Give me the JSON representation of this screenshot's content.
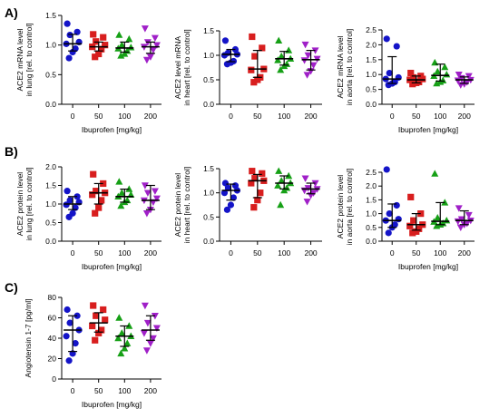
{
  "panel_labels": [
    "A)",
    "B)",
    "C)"
  ],
  "colors": {
    "0": "#1414c8",
    "50": "#d81e1e",
    "100": "#16a016",
    "200": "#a020c8",
    "axis": "#000000",
    "errorbar": "#000000"
  },
  "marker_shapes": {
    "0": "circle",
    "50": "square",
    "100": "triangle-up",
    "200": "triangle-down"
  },
  "chart_data": [
    {
      "id": "A1",
      "type": "scatter",
      "categories": [
        "0",
        "50",
        "100",
        "200"
      ],
      "xlabel": "Ibuprofen [mg/kg]",
      "ylabel_lines": [
        "ACE2 mRNA level",
        "in lung [rel. to control]"
      ],
      "ylim": [
        0,
        1.5
      ],
      "yticks": [
        0.0,
        0.5,
        1.0,
        1.5
      ],
      "yticklabels": [
        "0.0",
        "0.5",
        "1.0",
        "1.5"
      ],
      "grid": false,
      "series": [
        {
          "category": "0",
          "values": [
            1.36,
            1.22,
            1.17,
            1.05,
            1.02,
            0.94,
            0.88,
            0.78
          ],
          "median": 1.02,
          "err": [
            0.9,
            1.18
          ]
        },
        {
          "category": "50",
          "values": [
            1.18,
            1.13,
            1.06,
            1.0,
            0.97,
            0.93,
            0.85,
            0.8
          ],
          "median": 0.97,
          "err": [
            0.9,
            1.05
          ]
        },
        {
          "category": "100",
          "values": [
            1.17,
            1.1,
            1.0,
            0.96,
            0.94,
            0.9,
            0.85,
            0.82
          ],
          "median": 0.95,
          "err": [
            0.88,
            1.05
          ]
        },
        {
          "category": "200",
          "values": [
            1.28,
            1.12,
            1.05,
            1.0,
            0.97,
            0.92,
            0.8,
            0.75
          ],
          "median": 0.97,
          "err": [
            0.86,
            1.05
          ]
        }
      ]
    },
    {
      "id": "A2",
      "type": "scatter",
      "categories": [
        "0",
        "50",
        "100",
        "200"
      ],
      "xlabel": "",
      "ylabel_lines": [
        "ACE2 level mRNA",
        "in heart [rel. to control]"
      ],
      "ylim": [
        0,
        1.5
      ],
      "yticks": [
        0.0,
        0.5,
        1.0,
        1.5
      ],
      "yticklabels": [
        "0.0",
        "0.5",
        "1.0",
        "1.5"
      ],
      "grid": false,
      "series": [
        {
          "category": "0",
          "values": [
            1.3,
            1.12,
            1.05,
            1.02,
            1.0,
            0.88,
            0.85,
            0.82
          ],
          "median": 1.02,
          "err": [
            0.87,
            1.12
          ]
        },
        {
          "category": "50",
          "values": [
            1.38,
            1.15,
            0.98,
            0.72,
            0.7,
            0.55,
            0.5,
            0.45
          ],
          "median": 0.72,
          "err": [
            0.55,
            1.1
          ]
        },
        {
          "category": "100",
          "values": [
            1.3,
            1.1,
            0.98,
            0.93,
            0.9,
            0.82,
            0.78,
            0.7
          ],
          "median": 0.93,
          "err": [
            0.8,
            1.08
          ]
        },
        {
          "category": "200",
          "values": [
            1.22,
            1.1,
            1.0,
            0.93,
            0.9,
            0.8,
            0.68,
            0.6
          ],
          "median": 0.91,
          "err": [
            0.7,
            1.1
          ]
        }
      ]
    },
    {
      "id": "A3",
      "type": "scatter",
      "categories": [
        "0",
        "50",
        "100",
        "200"
      ],
      "xlabel": "Ibuprofen [mg/kg]",
      "ylabel_lines": [
        "ACE2 mRNA level",
        "in aorta [rel. to control]"
      ],
      "ylim": [
        0,
        2.5
      ],
      "yticks": [
        0.0,
        0.5,
        1.0,
        1.5,
        2.0,
        2.5
      ],
      "yticklabels": [
        "0.0",
        "0.5",
        "1.0",
        "1.5",
        "2.0",
        "2.5"
      ],
      "grid": false,
      "series": [
        {
          "category": "0",
          "values": [
            2.2,
            1.95,
            1.05,
            0.9,
            0.85,
            0.75,
            0.7,
            0.65
          ],
          "median": 0.85,
          "err": [
            0.7,
            1.6
          ]
        },
        {
          "category": "50",
          "values": [
            1.05,
            0.95,
            0.9,
            0.85,
            0.82,
            0.75,
            0.72,
            0.68
          ],
          "median": 0.82,
          "err": [
            0.72,
            0.95
          ]
        },
        {
          "category": "100",
          "values": [
            1.4,
            1.25,
            1.1,
            1.0,
            0.95,
            0.8,
            0.75,
            0.7
          ],
          "median": 0.97,
          "err": [
            0.78,
            1.35
          ]
        },
        {
          "category": "200",
          "values": [
            1.0,
            0.95,
            0.88,
            0.82,
            0.8,
            0.75,
            0.68,
            0.65
          ],
          "median": 0.82,
          "err": [
            0.7,
            0.92
          ]
        }
      ]
    },
    {
      "id": "B1",
      "type": "scatter",
      "categories": [
        "0",
        "50",
        "100",
        "200"
      ],
      "xlabel": "Ibuprofen [mg/kg]",
      "ylabel_lines": [
        "ACE2 protein level",
        "in lung [rel. to control]"
      ],
      "ylim": [
        0,
        2.0
      ],
      "yticks": [
        0.0,
        0.5,
        1.0,
        1.5,
        2.0
      ],
      "yticklabels": [
        "0.0",
        "0.5",
        "1.0",
        "1.5",
        "2.0"
      ],
      "grid": false,
      "series": [
        {
          "category": "0",
          "values": [
            1.35,
            1.2,
            1.1,
            1.05,
            0.98,
            0.9,
            0.75,
            0.65
          ],
          "median": 1.0,
          "err": [
            0.85,
            1.2
          ]
        },
        {
          "category": "50",
          "values": [
            1.8,
            1.55,
            1.35,
            1.3,
            1.25,
            1.1,
            0.9,
            0.75
          ],
          "median": 1.3,
          "err": [
            1.0,
            1.55
          ]
        },
        {
          "category": "100",
          "values": [
            1.6,
            1.4,
            1.3,
            1.25,
            1.2,
            1.1,
            1.05,
            0.95
          ],
          "median": 1.2,
          "err": [
            1.05,
            1.4
          ]
        },
        {
          "category": "200",
          "values": [
            1.5,
            1.35,
            1.3,
            1.15,
            1.1,
            1.05,
            0.85,
            0.75
          ],
          "median": 1.1,
          "err": [
            0.85,
            1.5
          ]
        }
      ]
    },
    {
      "id": "B2",
      "type": "scatter",
      "categories": [
        "0",
        "50",
        "100",
        "200"
      ],
      "xlabel": "",
      "ylabel_lines": [
        "ACE2 protein level",
        "in heart [rel. to control]"
      ],
      "ylim": [
        0,
        1.5
      ],
      "yticks": [
        0.0,
        0.5,
        1.0,
        1.5
      ],
      "yticklabels": [
        "0.0",
        "0.5",
        "1.0",
        "1.5"
      ],
      "grid": false,
      "series": [
        {
          "category": "0",
          "values": [
            1.2,
            1.15,
            1.1,
            1.05,
            1.0,
            0.9,
            0.75,
            0.65
          ],
          "median": 1.05,
          "err": [
            0.85,
            1.18
          ]
        },
        {
          "category": "50",
          "values": [
            1.45,
            1.4,
            1.3,
            1.25,
            1.2,
            1.0,
            0.85,
            0.7
          ],
          "median": 1.25,
          "err": [
            0.9,
            1.38
          ]
        },
        {
          "category": "100",
          "values": [
            1.45,
            1.35,
            1.25,
            1.2,
            1.15,
            1.1,
            1.05,
            0.75
          ],
          "median": 1.2,
          "err": [
            1.08,
            1.35
          ]
        },
        {
          "category": "200",
          "values": [
            1.3,
            1.2,
            1.1,
            1.08,
            1.05,
            1.0,
            0.95,
            0.82
          ],
          "median": 1.08,
          "err": [
            0.98,
            1.2
          ]
        }
      ]
    },
    {
      "id": "B3",
      "type": "scatter",
      "categories": [
        "0",
        "50",
        "100",
        "200"
      ],
      "xlabel": "Ibuprofen [mg/kg]",
      "ylabel_lines": [
        "ACE2 protein level",
        "in aorta [rel. to control]"
      ],
      "ylim": [
        0,
        2.5
      ],
      "yticks": [
        0.0,
        0.5,
        1.0,
        1.5,
        2.0,
        2.5
      ],
      "yticklabels": [
        "0.0",
        "0.5",
        "1.0",
        "1.5",
        "2.0",
        "2.5"
      ],
      "grid": false,
      "series": [
        {
          "category": "0",
          "values": [
            2.6,
            1.3,
            1.0,
            0.8,
            0.75,
            0.6,
            0.5,
            0.3
          ],
          "median": 0.75,
          "err": [
            0.5,
            1.35
          ]
        },
        {
          "category": "50",
          "values": [
            1.6,
            1.0,
            0.75,
            0.6,
            0.55,
            0.45,
            0.35,
            0.3
          ],
          "median": 0.6,
          "err": [
            0.4,
            1.0
          ]
        },
        {
          "category": "100",
          "values": [
            2.45,
            1.4,
            0.85,
            0.75,
            0.7,
            0.65,
            0.6,
            0.55
          ],
          "median": 0.72,
          "err": [
            0.6,
            1.4
          ]
        },
        {
          "category": "200",
          "values": [
            1.2,
            0.95,
            0.8,
            0.75,
            0.72,
            0.65,
            0.6,
            0.5
          ],
          "median": 0.75,
          "err": [
            0.6,
            1.1
          ]
        }
      ]
    },
    {
      "id": "C1",
      "type": "scatter",
      "categories": [
        "0",
        "50",
        "100",
        "200"
      ],
      "xlabel": "Ibuprofen [mg/kg]",
      "ylabel_lines": [
        "Angiotensin 1-7 [pg/ml]"
      ],
      "ylim": [
        0,
        80
      ],
      "yticks": [
        0,
        20,
        40,
        60,
        80
      ],
      "yticklabels": [
        "0",
        "20",
        "40",
        "60",
        "80"
      ],
      "grid": false,
      "series": [
        {
          "category": "0",
          "values": [
            68,
            62,
            55,
            48,
            42,
            35,
            25,
            18
          ],
          "median": 48,
          "err": [
            27,
            62
          ]
        },
        {
          "category": "50",
          "values": [
            72,
            68,
            62,
            58,
            52,
            48,
            45,
            38
          ],
          "median": 55,
          "err": [
            46,
            65
          ]
        },
        {
          "category": "100",
          "values": [
            60,
            52,
            45,
            42,
            40,
            35,
            30,
            25
          ],
          "median": 42,
          "err": [
            32,
            52
          ]
        },
        {
          "category": "200",
          "values": [
            72,
            62,
            55,
            50,
            45,
            40,
            35,
            28
          ],
          "median": 48,
          "err": [
            38,
            62
          ]
        }
      ]
    }
  ]
}
